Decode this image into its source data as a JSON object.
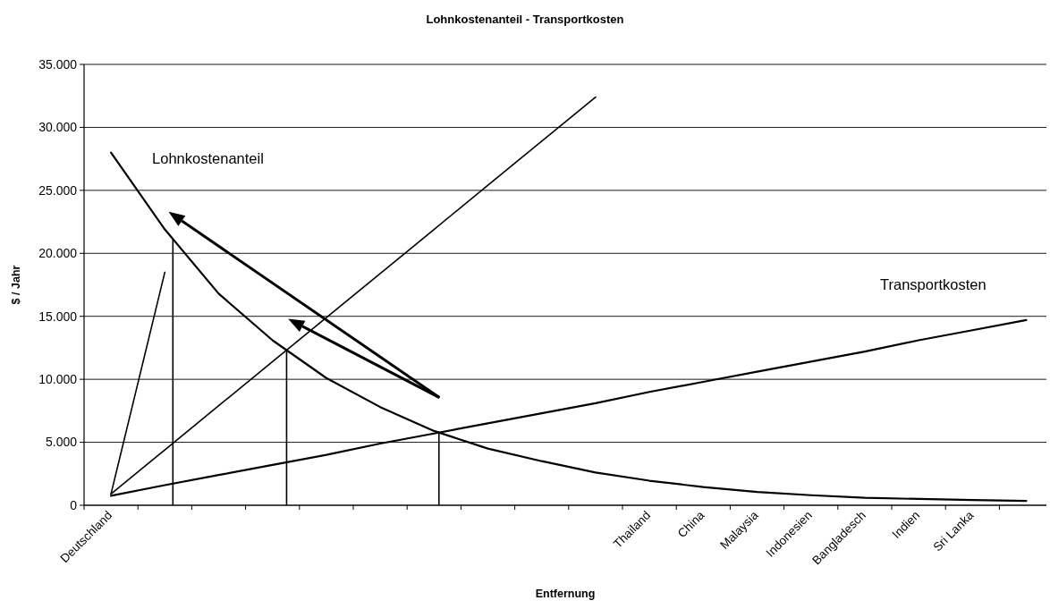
{
  "chart_data": {
    "type": "line",
    "title": "Lohnkostenanteil - Transportkosten",
    "xlabel": "Entfernung",
    "ylabel": "$ / Jahr",
    "categories": [
      "Deutschland",
      null,
      null,
      null,
      null,
      null,
      null,
      null,
      null,
      null,
      "Thailand",
      "China",
      "Malaysia",
      "Indonesien",
      "Bangladesch",
      "Indien",
      "Sri Lanka",
      null
    ],
    "ylim": [
      0,
      35000
    ],
    "yticks": [
      {
        "value": 0,
        "label": "0"
      },
      {
        "value": 5000,
        "label": "5.000"
      },
      {
        "value": 10000,
        "label": "10.000"
      },
      {
        "value": 15000,
        "label": "15.000"
      },
      {
        "value": 20000,
        "label": "20.000"
      },
      {
        "value": 25000,
        "label": "25.000"
      },
      {
        "value": 30000,
        "label": "30.000"
      },
      {
        "value": 35000,
        "label": "35.000"
      }
    ],
    "grid": "y",
    "legend": false,
    "marker": "none",
    "line_style": "solid",
    "series": [
      {
        "name": "Lohnkostenanteil",
        "color": "#000000",
        "values": [
          28000,
          21900,
          16800,
          13100,
          10100,
          7800,
          5900,
          4500,
          3500,
          2600,
          1950,
          1450,
          1050,
          800,
          600,
          500,
          420,
          350
        ]
      },
      {
        "name": "Transportkosten",
        "color": "#000000",
        "values": [
          750,
          1600,
          2400,
          3200,
          4000,
          4900,
          5700,
          6500,
          7300,
          8100,
          9000,
          9800,
          10600,
          11400,
          12200,
          13100,
          13900,
          14700
        ]
      },
      {
        "color": "#000000",
        "values": [
          900,
          4400,
          7900,
          11400,
          14900,
          18400,
          21900,
          25400,
          28900,
          32400,
          null,
          null,
          null,
          null,
          null,
          null,
          null,
          null
        ]
      },
      {
        "color": "#000000",
        "values": [
          900,
          18500,
          null,
          null,
          null,
          null,
          null,
          null,
          null,
          null,
          null,
          null,
          null,
          null,
          null,
          null,
          null,
          null
        ]
      }
    ]
  }
}
